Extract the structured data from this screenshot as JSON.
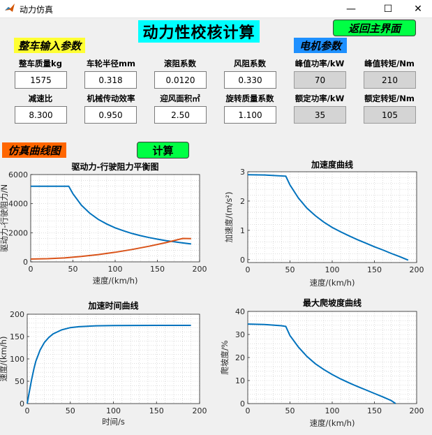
{
  "window": {
    "title": "动力仿真",
    "min_glyph": "—",
    "max_glyph": "☐",
    "close_glyph": "✕",
    "icon": "matlab-icon"
  },
  "main_title": "动力性校核计算",
  "return_button": "返回主界面",
  "section_vehicle": "整车输入参数",
  "section_motor": "电机参数",
  "section_sim": "仿真曲线图",
  "calc_button": "计算",
  "params_row1": [
    {
      "label": "整车质量kg",
      "value": "1575"
    },
    {
      "label": "车轮半径mm",
      "value": "0.318"
    },
    {
      "label": "滚阻系数",
      "value": "0.0120"
    },
    {
      "label": "风阻系数",
      "value": "0.330"
    },
    {
      "label": "峰值功率/kW",
      "value": "70"
    },
    {
      "label": "峰值转矩/Nm",
      "value": "210"
    }
  ],
  "params_row2": [
    {
      "label": "减速比",
      "value": "8.300"
    },
    {
      "label": "机械传动效率",
      "value": "0.950"
    },
    {
      "label": "迎风面积㎡",
      "value": "2.50"
    },
    {
      "label": "旋转质量系数",
      "value": "1.100"
    },
    {
      "label": "额定功率/kW",
      "value": "35"
    },
    {
      "label": "额定转矩/Nm",
      "value": "105"
    }
  ],
  "colors": {
    "blue_series": "#0072bd",
    "orange_series": "#d95319",
    "title_bg": "#00ffff",
    "button_green": "#00ff44"
  },
  "chart_data": [
    {
      "type": "line",
      "title": "驱动力-行驶阻力平衡图",
      "xlabel": "速度/(km/h)",
      "ylabel": "驱动力-行驶阻力/N",
      "xlim": [
        0,
        200
      ],
      "ylim": [
        0,
        6000
      ],
      "xticks": [
        0,
        50,
        100,
        150,
        200
      ],
      "yticks": [
        0,
        2000,
        4000,
        6000
      ],
      "grid": "minor-dotted",
      "series": [
        {
          "color": "#0072bd",
          "x": [
            0,
            20,
            45,
            50,
            60,
            70,
            80,
            90,
            100,
            110,
            120,
            130,
            140,
            150,
            160,
            170,
            180,
            190
          ],
          "values": [
            5200,
            5200,
            5200,
            4680,
            3900,
            3340,
            2920,
            2600,
            2340,
            2130,
            1950,
            1800,
            1670,
            1560,
            1460,
            1380,
            1300,
            1230
          ]
        },
        {
          "color": "#d95319",
          "x": [
            0,
            20,
            40,
            60,
            80,
            100,
            120,
            140,
            160,
            180,
            190
          ],
          "values": [
            190,
            215,
            270,
            370,
            500,
            660,
            850,
            1070,
            1320,
            1610,
            1600
          ]
        }
      ]
    },
    {
      "type": "line",
      "title": "加速度曲线",
      "xlabel": "速度/(km/h)",
      "ylabel": "加速度/(m/s²)",
      "xlim": [
        0,
        200
      ],
      "ylim": [
        -0.1,
        3
      ],
      "xticks": [
        0,
        50,
        100,
        150,
        200
      ],
      "yticks": [
        0,
        1,
        2,
        3
      ],
      "grid": "minor-dotted",
      "series": [
        {
          "color": "#0072bd",
          "x": [
            0,
            20,
            45,
            50,
            60,
            70,
            80,
            90,
            100,
            110,
            120,
            130,
            140,
            150,
            160,
            170,
            180,
            190
          ],
          "values": [
            2.9,
            2.89,
            2.85,
            2.55,
            2.1,
            1.76,
            1.5,
            1.28,
            1.1,
            0.95,
            0.81,
            0.68,
            0.56,
            0.44,
            0.33,
            0.21,
            0.1,
            -0.02
          ]
        }
      ]
    },
    {
      "type": "line",
      "title": "加速时间曲线",
      "xlabel": "时间/s",
      "ylabel": "速度/(km/h)",
      "xlim": [
        0,
        200
      ],
      "ylim": [
        0,
        200
      ],
      "xticks": [
        0,
        50,
        100,
        150,
        200
      ],
      "yticks": [
        0,
        50,
        100,
        150,
        200
      ],
      "grid": "minor-dotted",
      "series": [
        {
          "color": "#0072bd",
          "x": [
            0,
            2,
            5,
            8,
            10,
            15,
            20,
            25,
            30,
            40,
            50,
            60,
            80,
            100,
            150,
            190
          ],
          "values": [
            0,
            22,
            53,
            80,
            95,
            120,
            137,
            148,
            156,
            165,
            170,
            172,
            174,
            174.5,
            175,
            175
          ]
        }
      ]
    },
    {
      "type": "line",
      "title": "最大爬坡度曲线",
      "xlabel": "速度/(km/h)",
      "ylabel": "爬坡度/%",
      "xlim": [
        0,
        200
      ],
      "ylim": [
        0,
        40
      ],
      "xticks": [
        0,
        50,
        100,
        150,
        200
      ],
      "yticks": [
        0,
        10,
        20,
        30,
        40
      ],
      "grid": "minor-dotted",
      "series": [
        {
          "color": "#0072bd",
          "x": [
            0,
            20,
            40,
            45,
            50,
            60,
            70,
            80,
            90,
            100,
            110,
            120,
            130,
            140,
            150,
            160,
            170,
            175
          ],
          "values": [
            34.5,
            34.3,
            33.8,
            33.5,
            29.5,
            24.5,
            20.5,
            17.3,
            14.8,
            12.6,
            10.7,
            9.0,
            7.4,
            5.9,
            4.4,
            2.9,
            1.3,
            0
          ]
        }
      ]
    }
  ]
}
